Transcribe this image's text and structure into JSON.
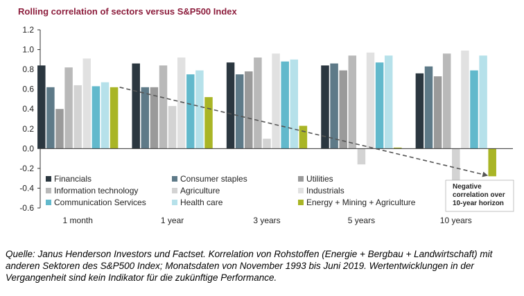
{
  "chart_data": {
    "type": "bar",
    "title": "Rolling correlation of sectors versus  S&P500 Index",
    "xlabel": "",
    "ylabel": "",
    "ylim": [
      -0.6,
      1.2
    ],
    "yticks": [
      "1.2",
      "1.0",
      "0.8",
      "0.6",
      "0.4",
      "0.2",
      "0.0",
      "-0.2",
      "-0.4",
      "-0.6"
    ],
    "categories": [
      "1 month",
      "1 year",
      "3 years",
      "5 years",
      "10 years"
    ],
    "series": [
      {
        "name": "Financials",
        "color": "#2b3740",
        "values": [
          0.84,
          0.86,
          0.87,
          0.84,
          0.76
        ]
      },
      {
        "name": "Consumer staples",
        "color": "#5e7a88",
        "values": [
          0.62,
          0.62,
          0.75,
          0.86,
          0.83
        ]
      },
      {
        "name": "Utilities",
        "color": "#9a9a9a",
        "values": [
          0.4,
          0.62,
          0.78,
          0.79,
          0.73
        ]
      },
      {
        "name": "Information technology",
        "color": "#b9b9b9",
        "values": [
          0.82,
          0.84,
          0.92,
          0.94,
          0.96
        ]
      },
      {
        "name": "Agriculture",
        "color": "#d3d3d3",
        "values": [
          0.64,
          0.43,
          0.1,
          -0.16,
          -0.42
        ]
      },
      {
        "name": "Industrials",
        "color": "#e1e1e1",
        "values": [
          0.91,
          0.92,
          0.96,
          0.97,
          0.99
        ]
      },
      {
        "name": "Communication Services",
        "color": "#62b9cc",
        "values": [
          0.63,
          0.75,
          0.88,
          0.87,
          0.79
        ]
      },
      {
        "name": "Health care",
        "color": "#b6e1ea",
        "values": [
          0.67,
          0.79,
          0.9,
          0.94,
          0.94
        ]
      },
      {
        "name": "Energy + Mining + Agriculture",
        "color": "#a9b526",
        "values": [
          0.62,
          0.52,
          0.23,
          0.01,
          -0.28
        ]
      }
    ],
    "trend_line": {
      "style": "dashed",
      "from": {
        "category": "1 month",
        "value": 0.62
      },
      "to": {
        "category": "10 years",
        "value": -0.27
      }
    },
    "annotation": {
      "lines": [
        "Negative",
        "correlation over",
        "10-year horizon"
      ]
    },
    "legend_position": "inside-bottom-left",
    "grid": false,
    "colors": {
      "title": "#8c1d3c",
      "axis": "#333333",
      "trend": "#555555"
    }
  },
  "source_text": "Quelle: Janus Henderson Investors und Factset. Korrelation von Rohstoffen (Energie + Bergbau + Landwirtschaft) mit anderen Sektoren des S&P500 Index; Monatsdaten von November 1993 bis Juni 2019. Wertentwicklungen in der Vergangenheit sind kein Indikator für die zukünftige Performance."
}
